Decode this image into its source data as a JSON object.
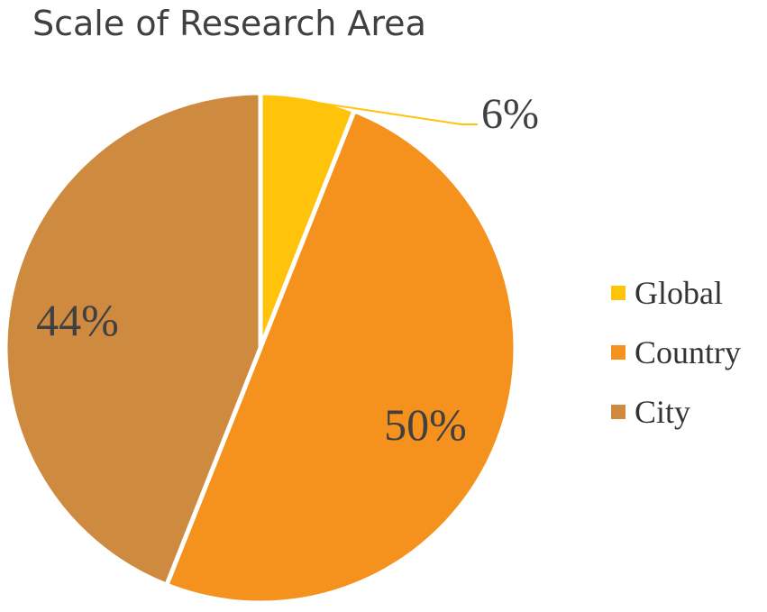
{
  "chart_data": {
    "type": "pie",
    "title": "Scale of Research Area",
    "categories": [
      "Global",
      "Country",
      "City"
    ],
    "values": [
      6,
      50,
      44
    ],
    "data_labels": [
      "6%",
      "50%",
      "44%"
    ],
    "colors": [
      "#FFC30B",
      "#F5921E",
      "#CE8A3E"
    ],
    "legend_position": "right",
    "start_angle_deg": 0,
    "direction": "clockwise"
  }
}
